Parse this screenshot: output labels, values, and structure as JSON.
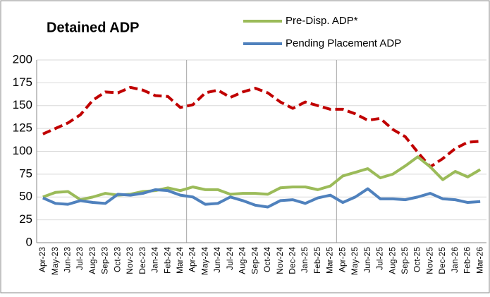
{
  "chart_data": {
    "type": "line",
    "title": "Detained ADP",
    "categories": [
      "Apr-23",
      "May-23",
      "Jun-23",
      "Jul-23",
      "Aug-23",
      "Sep-23",
      "Oct-23",
      "Nov-23",
      "Dec-23",
      "Jan-24",
      "Feb-24",
      "Mar-24",
      "Apr-24",
      "May-24",
      "Jun-24",
      "Jul-24",
      "Aug-24",
      "Sep-24",
      "Oct-24",
      "Nov-24",
      "Dec-24",
      "Jan-25",
      "Feb-25",
      "Mar-25",
      "Apr-25",
      "May-25",
      "Jun-25",
      "Jul-25",
      "Aug-25",
      "Sep-25",
      "Oct-25",
      "Nov-25",
      "Dec-25",
      "Jan-26",
      "Feb-26",
      "Mar-26"
    ],
    "series": [
      {
        "color": "#c00000",
        "dashed": true,
        "values": [
          119,
          125,
          131,
          140,
          156,
          165,
          164,
          170,
          167,
          161,
          160,
          148,
          151,
          164,
          167,
          159,
          165,
          169,
          164,
          154,
          147,
          154,
          150,
          146,
          146,
          141,
          134,
          136,
          124,
          116,
          99,
          83,
          92,
          103,
          110,
          111
        ]
      },
      {
        "name": "Pre-Disp. ADP*",
        "color": "#9bbb59",
        "values": [
          50,
          55,
          56,
          47,
          50,
          54,
          52,
          53,
          56,
          57,
          60,
          57,
          61,
          58,
          58,
          53,
          54,
          54,
          53,
          60,
          61,
          61,
          58,
          62,
          73,
          77,
          81,
          71,
          75,
          84,
          94,
          83,
          69,
          78,
          72,
          80
        ]
      },
      {
        "name": "Pending Placement ADP",
        "color": "#4f81bd",
        "values": [
          49,
          43,
          42,
          46,
          44,
          43,
          53,
          52,
          54,
          58,
          57,
          52,
          50,
          42,
          43,
          50,
          46,
          41,
          39,
          46,
          47,
          43,
          49,
          52,
          44,
          50,
          59,
          48,
          48,
          47,
          50,
          54,
          48,
          47,
          44,
          45
        ]
      }
    ],
    "ylim": [
      0,
      200
    ],
    "yticks": [
      0,
      25,
      50,
      75,
      100,
      125,
      150,
      175,
      200
    ],
    "grid": true
  }
}
